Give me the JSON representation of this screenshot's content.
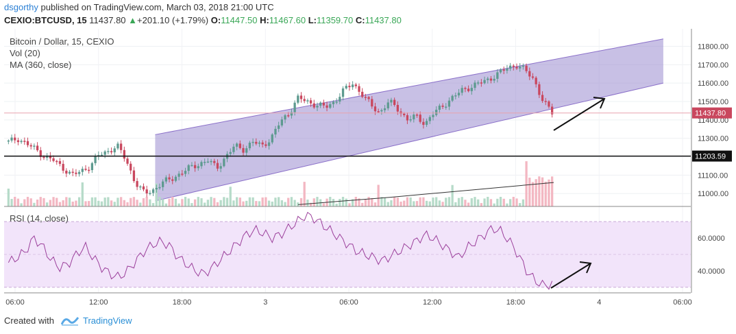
{
  "header": {
    "author": "dsgorthy",
    "published_text": "published on TradingView.com, March 03, 2018 21:00 UTC",
    "symbol": "CEXIO:BTCUSD, 15",
    "last": "11437.80",
    "change": "+201.10 (+1.79%)",
    "o_label": "O:",
    "o_value": "11447.50",
    "h_label": "H:",
    "h_value": "11467.60",
    "l_label": "L:",
    "l_value": "11359.70",
    "c_label": "C:",
    "c_value": "11437.80"
  },
  "legend": {
    "title": "Bitcoin / Dollar, 15, CEXIO",
    "vol": "Vol (20)",
    "ma": "MA (360, close)",
    "rsi": "RSI (14, close)"
  },
  "badges": {
    "last_price": "11437.80",
    "support": "11203.59"
  },
  "footer": {
    "created_with": "Created with",
    "brand": "TradingView"
  },
  "colors": {
    "up": "#5d9a8f",
    "down": "#c9475e",
    "channel_fill": "#9b8cd0",
    "rsi_line": "#9b3f9b",
    "rsi_band": "#f2e4fa"
  },
  "chart_data": [
    {
      "type": "candlestick",
      "title": "Bitcoin / Dollar, 15, CEXIO",
      "ylim": [
        10930,
        11880
      ],
      "y_ticks": [
        "11000.00",
        "11100.00",
        "11200.00",
        "11300.00",
        "11400.00",
        "11500.00",
        "11600.00",
        "11700.00",
        "11800.00"
      ],
      "x_ticks": [
        "06:00",
        "12:00",
        "18:00",
        "3",
        "06:00",
        "12:00",
        "18:00",
        "4",
        "06:00"
      ],
      "close_path": [
        11280,
        11300,
        11270,
        11240,
        11200,
        11180,
        11140,
        11100,
        11120,
        11150,
        11210,
        11230,
        11260,
        11180,
        11060,
        11000,
        11020,
        11060,
        11080,
        11110,
        11140,
        11160,
        11180,
        11140,
        11200,
        11260,
        11240,
        11280,
        11260,
        11300,
        11390,
        11440,
        11520,
        11500,
        11480,
        11470,
        11500,
        11560,
        11600,
        11540,
        11480,
        11440,
        11500,
        11460,
        11400,
        11420,
        11380,
        11440,
        11480,
        11520,
        11560,
        11580,
        11600,
        11620,
        11650,
        11680,
        11700,
        11670,
        11620,
        11500,
        11440
      ],
      "support_line": 11203.59,
      "last_price": 11437.8,
      "channel": {
        "start_x": 0.22,
        "end_x": 0.96,
        "lower": [
          10960,
          11600
        ],
        "upper": [
          11320,
          11840
        ]
      },
      "ma_360": [
        10940,
        10980,
        11020,
        11060
      ],
      "volume": "Vol (20)"
    },
    {
      "type": "line",
      "title": "RSI (14, close)",
      "ylim": [
        27,
        78
      ],
      "y_ticks": [
        "40.0000",
        "60.0000"
      ],
      "band": [
        30,
        70
      ],
      "values": [
        45,
        48,
        52,
        60,
        55,
        47,
        42,
        44,
        50,
        55,
        48,
        42,
        38,
        36,
        40,
        46,
        52,
        56,
        58,
        55,
        48,
        44,
        40,
        38,
        42,
        47,
        52,
        57,
        62,
        65,
        63,
        60,
        62,
        66,
        70,
        74,
        72,
        68,
        64,
        60,
        56,
        52,
        50,
        48,
        46,
        49,
        52,
        55,
        58,
        62,
        60,
        56,
        52,
        48,
        54,
        58,
        62,
        66,
        64,
        58,
        50,
        40,
        34,
        31,
        32
      ]
    }
  ]
}
